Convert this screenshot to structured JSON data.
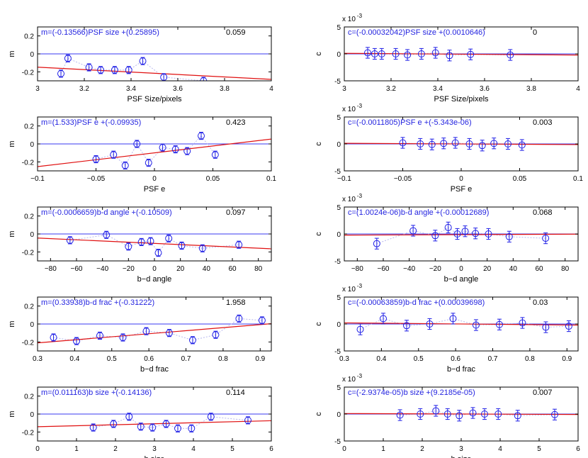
{
  "colors": {
    "marker": "#1f1fe6",
    "connector": "#b8b8ee",
    "fit": "#e01010",
    "zero": "#3838f0",
    "axis": "#000000",
    "equation": "#2424e0"
  },
  "chart_data": [
    {
      "type": "scatter",
      "ylabel": "m",
      "xlabel": "PSF Size/pixels",
      "xlim": [
        3,
        4
      ],
      "ylim": [
        -0.3,
        0.3
      ],
      "xticks": [
        "3",
        "3.2",
        "3.4",
        "3.6",
        "3.8",
        "4"
      ],
      "xtick_values": [
        3,
        3.2,
        3.4,
        3.6,
        3.8,
        4
      ],
      "yticks": [
        "0.2",
        "0",
        "-0.2"
      ],
      "ytick_values": [
        0.2,
        0,
        -0.2
      ],
      "equation": "m=(-0.13566)PSF size +(0.25895)",
      "score": "0.059",
      "fit": {
        "slope": -0.13566,
        "intercept": 0.25895
      },
      "points": [
        {
          "x": 3.1,
          "y": -0.22,
          "err": 0.04
        },
        {
          "x": 3.13,
          "y": -0.05,
          "err": 0.04
        },
        {
          "x": 3.22,
          "y": -0.15,
          "err": 0.04
        },
        {
          "x": 3.27,
          "y": -0.18,
          "err": 0.04
        },
        {
          "x": 3.33,
          "y": -0.18,
          "err": 0.04
        },
        {
          "x": 3.39,
          "y": -0.18,
          "err": 0.04
        },
        {
          "x": 3.45,
          "y": -0.08,
          "err": 0.04
        },
        {
          "x": 3.54,
          "y": -0.26,
          "err": 0.04
        },
        {
          "x": 3.71,
          "y": -0.3,
          "err": 0.04
        }
      ]
    },
    {
      "type": "scatter",
      "ylabel": "c",
      "xlabel": "PSF Size/pixels",
      "yexp": "x 10",
      "yexp_power": "-3",
      "xlim": [
        3,
        4
      ],
      "ylim": [
        -5,
        5
      ],
      "xticks": [
        "3",
        "3.2",
        "3.4",
        "3.6",
        "3.8",
        "4"
      ],
      "xtick_values": [
        3,
        3.2,
        3.4,
        3.6,
        3.8,
        4
      ],
      "yticks": [
        "5",
        "0",
        "-5"
      ],
      "ytick_values": [
        5,
        0,
        -5
      ],
      "equation": "c=(-0.00032042)PSF size +(0.0010646)",
      "score": "0",
      "fit": {
        "slope": -0.32042,
        "intercept": 1.0646
      },
      "points": [
        {
          "x": 3.1,
          "y": 0.2,
          "err": 1.0
        },
        {
          "x": 3.13,
          "y": 0.0,
          "err": 1.0
        },
        {
          "x": 3.16,
          "y": 0.0,
          "err": 1.0
        },
        {
          "x": 3.22,
          "y": 0.0,
          "err": 1.0
        },
        {
          "x": 3.27,
          "y": -0.2,
          "err": 1.0
        },
        {
          "x": 3.33,
          "y": 0.0,
          "err": 1.0
        },
        {
          "x": 3.39,
          "y": 0.2,
          "err": 1.0
        },
        {
          "x": 3.45,
          "y": -0.3,
          "err": 1.0
        },
        {
          "x": 3.54,
          "y": -0.1,
          "err": 1.0
        },
        {
          "x": 3.71,
          "y": -0.2,
          "err": 1.0
        }
      ]
    },
    {
      "type": "scatter",
      "ylabel": "m",
      "xlabel": "PSF e",
      "xlim": [
        -0.1,
        0.1
      ],
      "ylim": [
        -0.3,
        0.3
      ],
      "xticks": [
        "−0.1",
        "−0.05",
        "0",
        "0.05",
        "0.1"
      ],
      "xtick_values": [
        -0.1,
        -0.05,
        0,
        0.05,
        0.1
      ],
      "yticks": [
        "0.2",
        "0",
        "-0.2"
      ],
      "ytick_values": [
        0.2,
        0,
        -0.2
      ],
      "equation": "m=(1.533)PSF e +(-0.09935)",
      "score": "0.423",
      "fit": {
        "slope": 1.533,
        "intercept": -0.09935
      },
      "points": [
        {
          "x": -0.05,
          "y": -0.17,
          "err": 0.04
        },
        {
          "x": -0.035,
          "y": -0.12,
          "err": 0.04
        },
        {
          "x": -0.025,
          "y": -0.24,
          "err": 0.04
        },
        {
          "x": -0.015,
          "y": 0.0,
          "err": 0.04
        },
        {
          "x": -0.005,
          "y": -0.21,
          "err": 0.04
        },
        {
          "x": 0.007,
          "y": -0.04,
          "err": 0.04
        },
        {
          "x": 0.018,
          "y": -0.06,
          "err": 0.04
        },
        {
          "x": 0.028,
          "y": -0.08,
          "err": 0.04
        },
        {
          "x": 0.04,
          "y": 0.09,
          "err": 0.04
        },
        {
          "x": 0.052,
          "y": -0.12,
          "err": 0.04
        }
      ]
    },
    {
      "type": "scatter",
      "ylabel": "c",
      "xlabel": "PSF e",
      "yexp": "x 10",
      "yexp_power": "-3",
      "xlim": [
        -0.1,
        0.1
      ],
      "ylim": [
        -5,
        5
      ],
      "xticks": [
        "−0.1",
        "−0.05",
        "0",
        "0.05",
        "0.1"
      ],
      "xtick_values": [
        -0.1,
        -0.05,
        0,
        0.05,
        0.1
      ],
      "yticks": [
        "5",
        "0",
        "-5"
      ],
      "ytick_values": [
        5,
        0,
        -5
      ],
      "equation": "c=(-0.0011805)PSF e +(-5.343e-06)",
      "score": "0.003",
      "fit": {
        "slope": -1.1805,
        "intercept": -0.005343
      },
      "points": [
        {
          "x": -0.05,
          "y": 0.2,
          "err": 1.0
        },
        {
          "x": -0.035,
          "y": 0.0,
          "err": 1.0
        },
        {
          "x": -0.025,
          "y": -0.1,
          "err": 1.0
        },
        {
          "x": -0.015,
          "y": 0.1,
          "err": 1.0
        },
        {
          "x": -0.005,
          "y": 0.2,
          "err": 1.0
        },
        {
          "x": 0.007,
          "y": 0.0,
          "err": 1.0
        },
        {
          "x": 0.018,
          "y": -0.3,
          "err": 1.0
        },
        {
          "x": 0.028,
          "y": 0.1,
          "err": 1.0
        },
        {
          "x": 0.04,
          "y": 0.0,
          "err": 1.0
        },
        {
          "x": 0.052,
          "y": -0.2,
          "err": 1.0
        }
      ]
    },
    {
      "type": "scatter",
      "ylabel": "m",
      "xlabel": "b−d angle",
      "xlim": [
        -90,
        90
      ],
      "ylim": [
        -0.3,
        0.3
      ],
      "xticks": [
        "−80",
        "−60",
        "−40",
        "−20",
        "0",
        "20",
        "40",
        "60",
        "80"
      ],
      "xtick_values": [
        -80,
        -60,
        -40,
        -20,
        0,
        20,
        40,
        60,
        80
      ],
      "yticks": [
        "0.2",
        "0",
        "-0.2"
      ],
      "ytick_values": [
        0.2,
        0,
        -0.2
      ],
      "equation": "m=(-0.0006659)b-d angle +(-0.10509)",
      "score": "0.097",
      "fit": {
        "slope": -0.0006659,
        "intercept": -0.10509
      },
      "points": [
        {
          "x": -65,
          "y": -0.07,
          "err": 0.04
        },
        {
          "x": -37,
          "y": -0.01,
          "err": 0.04
        },
        {
          "x": -20,
          "y": -0.14,
          "err": 0.04
        },
        {
          "x": -10,
          "y": -0.09,
          "err": 0.04
        },
        {
          "x": -3,
          "y": -0.08,
          "err": 0.04
        },
        {
          "x": 3,
          "y": -0.21,
          "err": 0.04
        },
        {
          "x": 11,
          "y": -0.05,
          "err": 0.04
        },
        {
          "x": 21,
          "y": -0.13,
          "err": 0.04
        },
        {
          "x": 37,
          "y": -0.16,
          "err": 0.04
        },
        {
          "x": 65,
          "y": -0.12,
          "err": 0.04
        }
      ]
    },
    {
      "type": "scatter",
      "ylabel": "c",
      "xlabel": "b−d angle",
      "yexp": "x 10",
      "yexp_power": "-3",
      "xlim": [
        -90,
        90
      ],
      "ylim": [
        -5,
        5
      ],
      "xticks": [
        "−80",
        "−60",
        "−40",
        "−20",
        "0",
        "20",
        "40",
        "60",
        "80"
      ],
      "xtick_values": [
        -80,
        -60,
        -40,
        -20,
        0,
        20,
        40,
        60,
        80
      ],
      "yticks": [
        "5",
        "0",
        "-5"
      ],
      "ytick_values": [
        5,
        0,
        -5
      ],
      "equation": "c=(1.0024e-06)b-d angle +(-0.00012689)",
      "score": "0.068",
      "fit": {
        "slope": 0.0010024,
        "intercept": -0.12689
      },
      "points": [
        {
          "x": -65,
          "y": -1.8,
          "err": 1.0
        },
        {
          "x": -37,
          "y": 0.6,
          "err": 1.0
        },
        {
          "x": -20,
          "y": -0.3,
          "err": 1.0
        },
        {
          "x": -10,
          "y": 1.2,
          "err": 1.0
        },
        {
          "x": -3,
          "y": 0.0,
          "err": 1.0
        },
        {
          "x": 3,
          "y": 0.5,
          "err": 1.0
        },
        {
          "x": 11,
          "y": 0.1,
          "err": 1.0
        },
        {
          "x": 21,
          "y": 0.0,
          "err": 1.0
        },
        {
          "x": 37,
          "y": -0.5,
          "err": 1.0
        },
        {
          "x": 65,
          "y": -0.8,
          "err": 1.0
        }
      ]
    },
    {
      "type": "scatter",
      "ylabel": "m",
      "xlabel": "b−d frac",
      "xlim": [
        0.3,
        0.93
      ],
      "ylim": [
        -0.3,
        0.3
      ],
      "xticks": [
        "0.3",
        "0.4",
        "0.5",
        "0.6",
        "0.7",
        "0.8",
        "0.9"
      ],
      "xtick_values": [
        0.3,
        0.4,
        0.5,
        0.6,
        0.7,
        0.8,
        0.9
      ],
      "yticks": [
        "0.2",
        "0",
        "-0.2"
      ],
      "ytick_values": [
        0.2,
        0,
        -0.2
      ],
      "equation": "m=(0.33938)b-d frac +(-0.31222)",
      "score": "1.958",
      "fit": {
        "slope": 0.33938,
        "intercept": -0.31222
      },
      "points": [
        {
          "x": 0.343,
          "y": -0.15,
          "err": 0.04
        },
        {
          "x": 0.405,
          "y": -0.19,
          "err": 0.04
        },
        {
          "x": 0.468,
          "y": -0.13,
          "err": 0.04
        },
        {
          "x": 0.53,
          "y": -0.15,
          "err": 0.04
        },
        {
          "x": 0.593,
          "y": -0.08,
          "err": 0.04
        },
        {
          "x": 0.655,
          "y": -0.1,
          "err": 0.04
        },
        {
          "x": 0.718,
          "y": -0.18,
          "err": 0.04
        },
        {
          "x": 0.78,
          "y": -0.12,
          "err": 0.04
        },
        {
          "x": 0.843,
          "y": 0.06,
          "err": 0.04
        },
        {
          "x": 0.905,
          "y": 0.04,
          "err": 0.04
        }
      ]
    },
    {
      "type": "scatter",
      "ylabel": "c",
      "xlabel": "b−d frac",
      "yexp": "x 10",
      "yexp_power": "-3",
      "xlim": [
        0.3,
        0.93
      ],
      "ylim": [
        -5,
        5
      ],
      "xticks": [
        "0.3",
        "0.4",
        "0.5",
        "0.6",
        "0.7",
        "0.8",
        "0.9"
      ],
      "xtick_values": [
        0.3,
        0.4,
        0.5,
        0.6,
        0.7,
        0.8,
        0.9
      ],
      "yticks": [
        "5",
        "0",
        "-5"
      ],
      "ytick_values": [
        5,
        0,
        -5
      ],
      "equation": "c=(-0.00063859)b-d frac +(0.00039698)",
      "score": "0.03",
      "fit": {
        "slope": -0.63859,
        "intercept": 0.39698
      },
      "points": [
        {
          "x": 0.343,
          "y": -1.0,
          "err": 1.0
        },
        {
          "x": 0.405,
          "y": 1.0,
          "err": 1.0
        },
        {
          "x": 0.468,
          "y": -0.3,
          "err": 1.0
        },
        {
          "x": 0.53,
          "y": 0.0,
          "err": 1.0
        },
        {
          "x": 0.593,
          "y": 1.0,
          "err": 1.0
        },
        {
          "x": 0.655,
          "y": -0.2,
          "err": 1.0
        },
        {
          "x": 0.718,
          "y": -0.1,
          "err": 1.0
        },
        {
          "x": 0.78,
          "y": 0.2,
          "err": 1.0
        },
        {
          "x": 0.843,
          "y": -0.6,
          "err": 1.0
        },
        {
          "x": 0.905,
          "y": -0.4,
          "err": 1.0
        }
      ]
    },
    {
      "type": "scatter",
      "ylabel": "m",
      "xlabel": "b size",
      "xlim": [
        0,
        6
      ],
      "ylim": [
        -0.3,
        0.3
      ],
      "xticks": [
        "0",
        "1",
        "2",
        "3",
        "4",
        "5",
        "6"
      ],
      "xtick_values": [
        0,
        1,
        2,
        3,
        4,
        5,
        6
      ],
      "yticks": [
        "0.2",
        "0",
        "-0.2"
      ],
      "ytick_values": [
        0.2,
        0,
        -0.2
      ],
      "equation": "m=(0.011163)b size +(-0.14136)",
      "score": "0.114",
      "fit": {
        "slope": 0.011163,
        "intercept": -0.14136
      },
      "points": [
        {
          "x": 1.43,
          "y": -0.15,
          "err": 0.04
        },
        {
          "x": 1.95,
          "y": -0.11,
          "err": 0.04
        },
        {
          "x": 2.35,
          "y": -0.03,
          "err": 0.04
        },
        {
          "x": 2.65,
          "y": -0.14,
          "err": 0.04
        },
        {
          "x": 2.95,
          "y": -0.15,
          "err": 0.04
        },
        {
          "x": 3.3,
          "y": -0.11,
          "err": 0.04
        },
        {
          "x": 3.6,
          "y": -0.16,
          "err": 0.04
        },
        {
          "x": 3.95,
          "y": -0.16,
          "err": 0.04
        },
        {
          "x": 4.45,
          "y": -0.03,
          "err": 0.04
        },
        {
          "x": 5.4,
          "y": -0.07,
          "err": 0.04
        }
      ]
    },
    {
      "type": "scatter",
      "ylabel": "c",
      "xlabel": "b size",
      "yexp": "x 10",
      "yexp_power": "-3",
      "xlim": [
        0,
        6
      ],
      "ylim": [
        -5,
        5
      ],
      "xticks": [
        "0",
        "1",
        "2",
        "3",
        "4",
        "5",
        "6"
      ],
      "xtick_values": [
        0,
        1,
        2,
        3,
        4,
        5,
        6
      ],
      "yticks": [
        "5",
        "0",
        "-5"
      ],
      "ytick_values": [
        5,
        0,
        -5
      ],
      "equation": "c=(-2.9374e-05)b size +(9.2185e-05)",
      "score": "0.007",
      "fit": {
        "slope": -0.029374,
        "intercept": 0.092185
      },
      "points": [
        {
          "x": 1.43,
          "y": -0.2,
          "err": 1.0
        },
        {
          "x": 1.95,
          "y": 0.0,
          "err": 1.0
        },
        {
          "x": 2.35,
          "y": 0.6,
          "err": 1.0
        },
        {
          "x": 2.65,
          "y": 0.0,
          "err": 1.0
        },
        {
          "x": 2.95,
          "y": -0.3,
          "err": 1.0
        },
        {
          "x": 3.3,
          "y": 0.2,
          "err": 1.0
        },
        {
          "x": 3.6,
          "y": 0.0,
          "err": 1.0
        },
        {
          "x": 3.95,
          "y": 0.0,
          "err": 1.0
        },
        {
          "x": 4.45,
          "y": -0.3,
          "err": 1.0
        },
        {
          "x": 5.4,
          "y": -0.1,
          "err": 1.0
        }
      ]
    }
  ]
}
